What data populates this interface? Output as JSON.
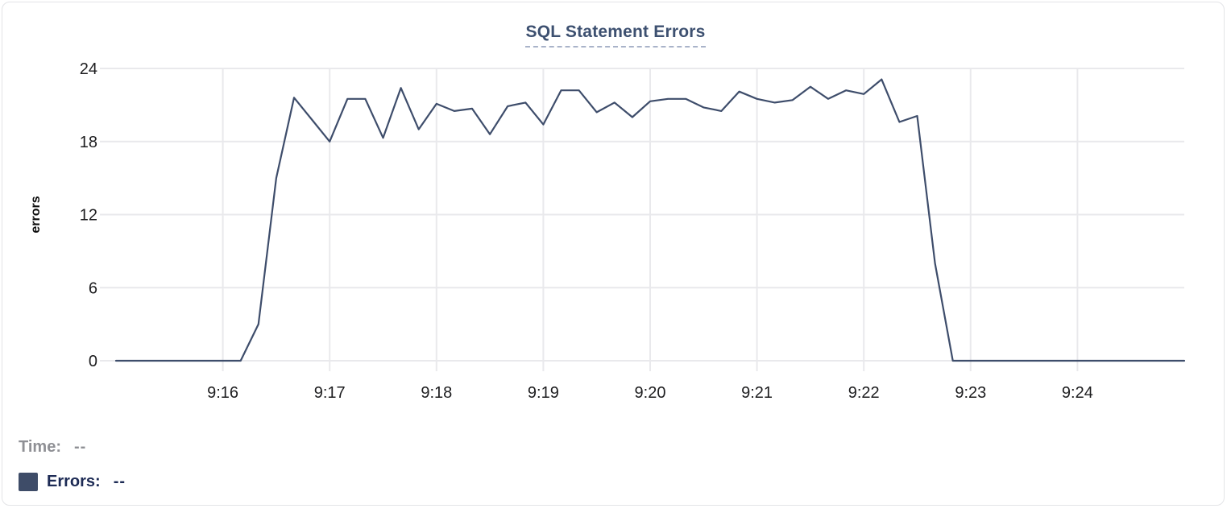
{
  "chart_data": {
    "type": "line",
    "title": "SQL Statement Errors",
    "xlabel": "",
    "ylabel": "errors",
    "ylim": [
      0,
      24
    ],
    "y_ticks": [
      0,
      6,
      12,
      18,
      24
    ],
    "x_tick_labels": [
      "9:16",
      "9:17",
      "9:18",
      "9:19",
      "9:20",
      "9:21",
      "9:22",
      "9:23",
      "9:24"
    ],
    "x_range": [
      "9:15:00",
      "9:25:00"
    ],
    "sample_interval_seconds": 10,
    "grid": true,
    "legend_position": "bottom-left",
    "series": [
      {
        "name": "Errors",
        "color": "#3e4d6b",
        "times": [
          "9:15:00",
          "9:15:10",
          "9:15:20",
          "9:15:30",
          "9:15:40",
          "9:15:50",
          "9:16:00",
          "9:16:10",
          "9:16:20",
          "9:16:30",
          "9:16:40",
          "9:16:50",
          "9:17:00",
          "9:17:10",
          "9:17:20",
          "9:17:30",
          "9:17:40",
          "9:17:50",
          "9:18:00",
          "9:18:10",
          "9:18:20",
          "9:18:30",
          "9:18:40",
          "9:18:50",
          "9:19:00",
          "9:19:10",
          "9:19:20",
          "9:19:30",
          "9:19:40",
          "9:19:50",
          "9:20:00",
          "9:20:10",
          "9:20:20",
          "9:20:30",
          "9:20:40",
          "9:20:50",
          "9:21:00",
          "9:21:10",
          "9:21:20",
          "9:21:30",
          "9:21:40",
          "9:21:50",
          "9:22:00",
          "9:22:10",
          "9:22:20",
          "9:22:30",
          "9:22:40",
          "9:22:50",
          "9:23:00",
          "9:23:10",
          "9:23:20",
          "9:23:30",
          "9:23:40",
          "9:23:50",
          "9:24:00",
          "9:24:10",
          "9:24:20",
          "9:24:30",
          "9:24:40",
          "9:24:50",
          "9:25:00"
        ],
        "values": [
          0,
          0,
          0,
          0,
          0,
          0,
          0,
          0,
          3,
          15,
          21.6,
          19.8,
          18,
          21.5,
          21.5,
          18.3,
          22.4,
          19,
          21.1,
          20.5,
          20.7,
          18.6,
          20.9,
          21.2,
          19.4,
          22.2,
          22.2,
          20.4,
          21.2,
          20,
          21.3,
          21.5,
          21.5,
          20.8,
          20.5,
          22.1,
          21.5,
          21.2,
          21.4,
          22.5,
          21.5,
          22.2,
          21.9,
          23.1,
          19.6,
          20.1,
          8,
          0,
          0,
          0,
          0,
          0,
          0,
          0,
          0,
          0,
          0,
          0,
          0,
          0,
          0
        ]
      }
    ]
  },
  "readout": {
    "time_label": "Time:",
    "time_value": "--",
    "errors_label": "Errors:",
    "errors_value": "--"
  },
  "colors": {
    "line": "#3e4d6b",
    "title_text": "#3d5070",
    "title_underline": "#a9b3c9",
    "grid_line": "#e9e9ec",
    "tick_text": "#1d1d1f",
    "axis_label_text": "#0d0d0d",
    "time_text": "#8f9095",
    "errors_text": "#1d2b55",
    "legend_swatch": "#3e4c68",
    "card_border": "#e3e4e7",
    "background": "#ffffff"
  }
}
